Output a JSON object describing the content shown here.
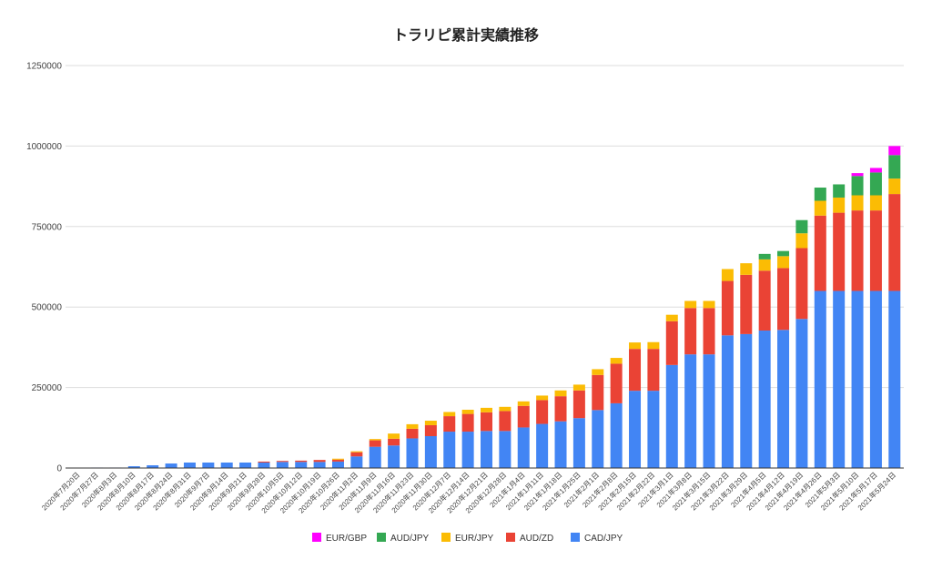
{
  "chart_data": {
    "type": "bar",
    "stacked": true,
    "title": "トラリピ累計実績推移",
    "xlabel": "",
    "ylabel": "",
    "ylim": [
      0,
      1250000
    ],
    "yticks": [
      "0",
      "250000",
      "500000",
      "750000",
      "1000000",
      "1250000"
    ],
    "grid": true,
    "legend_position": "bottom",
    "categories": [
      "2020年7月20日",
      "2020年7月27日",
      "2020年8月3日",
      "2020年8月10日",
      "2020年8月17日",
      "2020年8月24日",
      "2020年8月31日",
      "2020年9月7日",
      "2020年9月14日",
      "2020年9月21日",
      "2020年9月28日",
      "2020年10月5日",
      "2020年10月12日",
      "2020年10月19日",
      "2020年10月26日",
      "2020年11月2日",
      "2020年11月9日",
      "2020年11月16日",
      "2020年11月23日",
      "2020年11月30日",
      "2020年12月7日",
      "2020年12月14日",
      "2020年12月21日",
      "2020年12月28日",
      "2021年1月4日",
      "2021年1月11日",
      "2021年1月18日",
      "2021年1月25日",
      "2021年2月1日",
      "2021年2月8日",
      "2021年2月15日",
      "2021年2月22日",
      "2021年3月1日",
      "2021年3月8日",
      "2021年3月15日",
      "2021年3月22日",
      "2021年3月29日",
      "2021年4月5日",
      "2021年4月12日",
      "2021年4月19日",
      "2021年4月26日",
      "2021年5月3日",
      "2021年5月10日",
      "2021年5月17日",
      "2021年5月24日"
    ],
    "series": [
      {
        "name": "CAD/JPY",
        "color": "#4285f4",
        "values": [
          500,
          1500,
          1500,
          5500,
          8500,
          14000,
          17000,
          17000,
          17000,
          17000,
          17000,
          19000,
          19000,
          19000,
          20000,
          36000,
          66000,
          70000,
          92000,
          99000,
          113000,
          113000,
          115000,
          115000,
          126000,
          137000,
          145000,
          155000,
          180000,
          201000,
          240000,
          240000,
          320000,
          353000,
          353000,
          412000,
          416000,
          427000,
          429000,
          463000,
          550000,
          550000,
          550000,
          550000,
          550000
        ]
      },
      {
        "name": "AUD/ZD",
        "color": "#ea4335",
        "values": [
          0,
          0,
          0,
          0,
          0,
          0,
          0,
          0,
          0,
          0,
          3000,
          3000,
          4000,
          6000,
          6000,
          13000,
          20000,
          21000,
          30000,
          34000,
          48000,
          55000,
          58000,
          62000,
          67000,
          74000,
          78000,
          86000,
          109000,
          123000,
          130000,
          130000,
          136000,
          144000,
          144000,
          169000,
          184000,
          186000,
          192000,
          220000,
          234000,
          243000,
          250000,
          250000,
          301000
        ]
      },
      {
        "name": "EUR/JPY",
        "color": "#fbbc04",
        "values": [
          0,
          0,
          0,
          0,
          0,
          0,
          0,
          0,
          0,
          0,
          0,
          0,
          0,
          0,
          3000,
          3000,
          4000,
          16000,
          14000,
          14000,
          13000,
          13000,
          14000,
          13000,
          14000,
          14000,
          18000,
          18000,
          18000,
          18000,
          20000,
          21000,
          20000,
          22000,
          22000,
          37000,
          36000,
          35000,
          37000,
          46000,
          46000,
          47000,
          47000,
          47000,
          48000
        ]
      },
      {
        "name": "AUD/JPY",
        "color": "#34a853",
        "values": [
          0,
          0,
          0,
          0,
          0,
          0,
          0,
          0,
          0,
          0,
          0,
          0,
          0,
          0,
          0,
          0,
          0,
          0,
          0,
          0,
          0,
          0,
          0,
          0,
          0,
          0,
          0,
          0,
          0,
          0,
          0,
          0,
          0,
          0,
          0,
          0,
          0,
          17000,
          16000,
          41000,
          41000,
          41000,
          60000,
          71000,
          73000
        ]
      },
      {
        "name": "EUR/GBP",
        "color": "#ff00ff",
        "values": [
          0,
          0,
          0,
          0,
          0,
          0,
          0,
          0,
          0,
          0,
          0,
          0,
          0,
          0,
          0,
          0,
          0,
          0,
          0,
          0,
          0,
          0,
          0,
          0,
          0,
          0,
          0,
          0,
          0,
          0,
          0,
          0,
          0,
          0,
          0,
          0,
          0,
          0,
          0,
          0,
          0,
          0,
          9000,
          14000,
          28000
        ]
      }
    ],
    "legend_order": [
      "EUR/GBP",
      "AUD/JPY",
      "EUR/JPY",
      "AUD/ZD",
      "CAD/JPY"
    ]
  }
}
